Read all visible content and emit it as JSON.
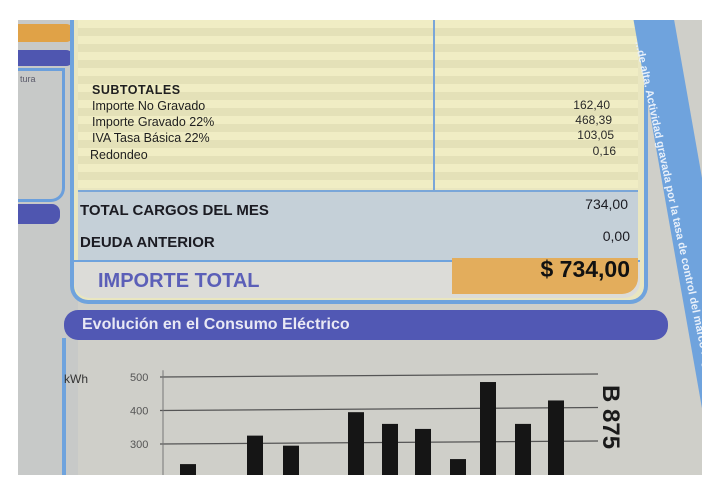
{
  "left_panel": {
    "label": "tura"
  },
  "subtotals": {
    "heading": "SUBTOTALES",
    "rows": [
      {
        "label": "Importe No Gravado",
        "value": "162,40"
      },
      {
        "label": "Importe Gravado 22%",
        "value": "468,39"
      },
      {
        "label": "IVA Tasa Básica 22%",
        "value": "103,05"
      },
      {
        "label": "Redondeo",
        "value": "0,16"
      }
    ]
  },
  "totals": [
    {
      "label": "TOTAL CARGOS DEL MES",
      "value": "734,00"
    },
    {
      "label": "DEUDA ANTERIOR",
      "value": "0,00"
    }
  ],
  "importe_total": {
    "label": "IMPORTE TOTAL",
    "value": "$ 734,00"
  },
  "side_text": "...de alta. Actividad gravada por la tasa de control del marco reg...",
  "serial": "B 875",
  "colors": {
    "frame_blue": "#6fa3dd",
    "header_purple": "#5158b4",
    "total_orange": "#e3ad5c"
  },
  "chart_data": {
    "type": "bar",
    "title": "Evolución en el Consumo Eléctrico",
    "ylabel": "kWh",
    "yticks": [
      300,
      400,
      500
    ],
    "ylim": [
      200,
      520
    ],
    "grid": true,
    "values": [
      240,
      325,
      295,
      395,
      360,
      345,
      255,
      485,
      360,
      430
    ]
  }
}
